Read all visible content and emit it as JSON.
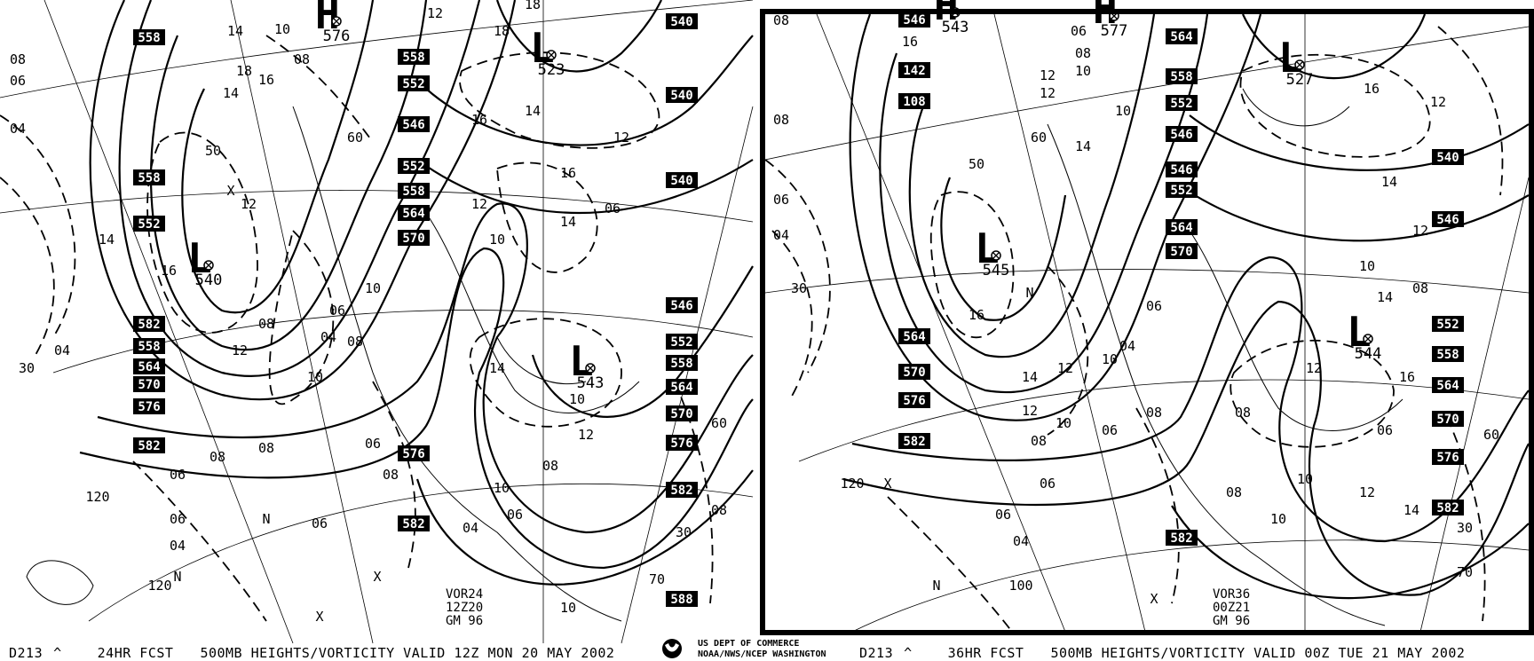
{
  "left_panel": {
    "caption": {
      "id": "D213",
      "mark": "^",
      "forecast": "24HR FCST",
      "title": "500MB HEIGHTS/VORTICITY VALID 12Z MON 20 MAY 2002"
    },
    "info": [
      "VOR24",
      "12Z20",
      "GM 96"
    ],
    "height_labels": [
      "558",
      "558",
      "552",
      "546",
      "552",
      "558",
      "564",
      "570",
      "558",
      "552",
      "582",
      "558",
      "564",
      "570",
      "576",
      "582",
      "576",
      "582",
      "540",
      "540",
      "540",
      "546",
      "552",
      "558",
      "564",
      "570",
      "576",
      "582",
      "588"
    ],
    "centers": [
      {
        "type": "H",
        "value": "576"
      },
      {
        "type": "L",
        "value": "523"
      },
      {
        "type": "L",
        "value": "540"
      },
      {
        "type": "L",
        "value": "543"
      }
    ],
    "vorticity_labels": [
      "08",
      "06",
      "04",
      "14",
      "10",
      "08",
      "16",
      "18",
      "14",
      "16",
      "12",
      "14",
      "12",
      "10",
      "08",
      "06",
      "04",
      "08",
      "06",
      "10",
      "12",
      "14",
      "16",
      "18",
      "12",
      "10",
      "08",
      "06",
      "04",
      "06",
      "08",
      "10",
      "12",
      "14",
      "06",
      "04",
      "06",
      "10",
      "08",
      "14",
      "16",
      "18",
      "12",
      "10",
      "08",
      "06",
      "04",
      "08"
    ],
    "lat_labels": [
      "30",
      "50",
      "60",
      "120",
      "120",
      "70",
      "30",
      "60",
      "N",
      "X",
      "X",
      "N",
      "X"
    ]
  },
  "right_panel": {
    "caption": {
      "id": "D213",
      "mark": "^",
      "forecast": "36HR FCST",
      "title": "500MB HEIGHTS/VORTICITY VALID 00Z TUE 21 MAY 2002"
    },
    "info": [
      "VOR36",
      "00Z21",
      "GM 96"
    ],
    "height_labels": [
      "546",
      "142",
      "108",
      "564",
      "558",
      "552",
      "546",
      "546",
      "552",
      "564",
      "570",
      "540",
      "546",
      "552",
      "558",
      "564",
      "570",
      "576",
      "582",
      "564",
      "570",
      "576",
      "582",
      "582"
    ],
    "centers": [
      {
        "type": "H",
        "value": "543"
      },
      {
        "type": "H",
        "value": "577"
      },
      {
        "type": "L",
        "value": "527"
      },
      {
        "type": "L",
        "value": "545"
      },
      {
        "type": "L",
        "value": "544"
      }
    ],
    "vorticity_labels": [
      "08",
      "16",
      "06",
      "08",
      "10",
      "12",
      "12",
      "10",
      "14",
      "16",
      "12",
      "14",
      "12",
      "10",
      "08",
      "06",
      "04",
      "08",
      "06",
      "10",
      "12",
      "14",
      "16",
      "12",
      "10",
      "08",
      "06",
      "04",
      "06",
      "08",
      "10",
      "12",
      "14",
      "06",
      "08",
      "10",
      "12",
      "14",
      "16",
      "08",
      "06",
      "04"
    ],
    "lat_labels": [
      "30",
      "50",
      "60",
      "120",
      "100",
      "70",
      "30",
      "60",
      "N",
      "X",
      "X",
      "N"
    ]
  },
  "agency": {
    "line1": "US DEPT OF COMMERCE",
    "line2": "NOAA/NWS/NCEP WASHINGTON",
    "logo": "noaa-logo"
  }
}
